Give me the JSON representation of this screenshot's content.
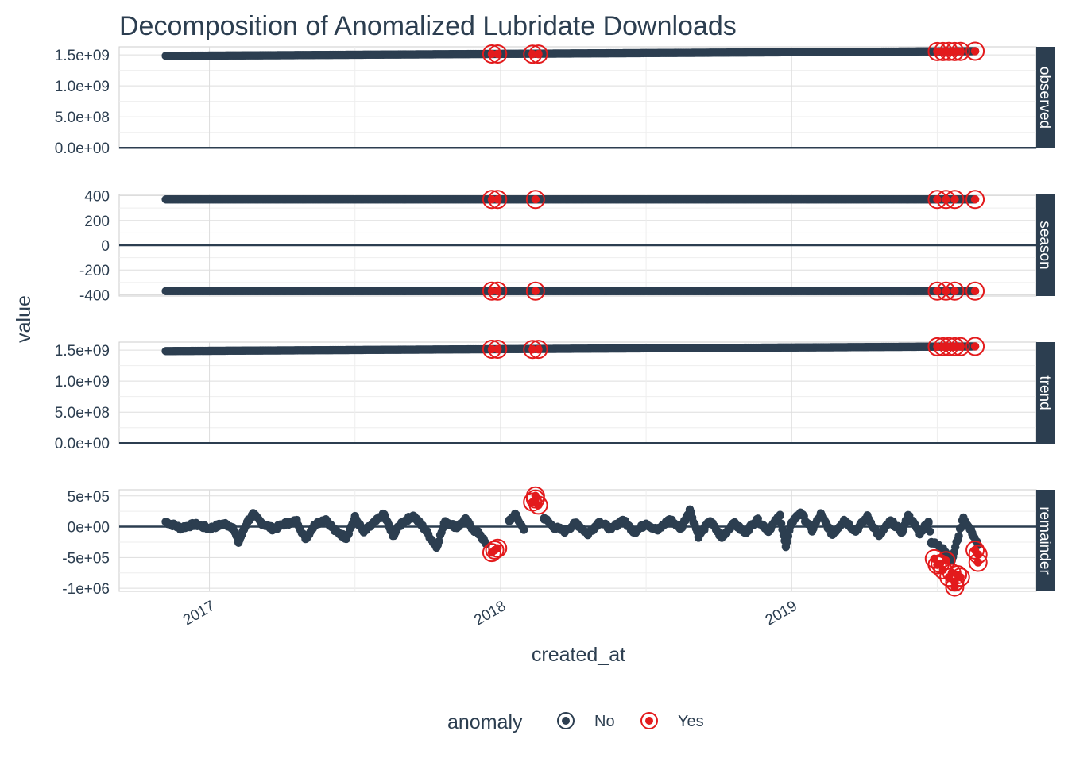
{
  "title": "Decomposition of Anomalized Lubridate Downloads",
  "colors": {
    "normal": "#2c3e50",
    "anomaly": "#e31a1c",
    "grid": "#dddddd",
    "strip_bg": "#2c3e50"
  },
  "legend": {
    "title": "anomaly",
    "items": [
      "No",
      "Yes"
    ]
  },
  "chart_data": {
    "type": "scatter",
    "xlabel": "created_at",
    "ylabel": "value",
    "x_range": [
      2016.69,
      2019.84
    ],
    "x_ticks": [
      {
        "value": 2017.0,
        "label": "2017"
      },
      {
        "value": 2018.0,
        "label": "2018"
      },
      {
        "value": 2019.0,
        "label": "2019"
      }
    ],
    "panels": [
      {
        "name": "observed",
        "ylim": [
          -10000000.0,
          1630000000.0
        ],
        "y_ticks": [
          {
            "value": 0,
            "label": "0.0e+00"
          },
          {
            "value": 500000000.0,
            "label": "5.0e+08"
          },
          {
            "value": 1000000000.0,
            "label": "1.0e+09"
          },
          {
            "value": 1500000000.0,
            "label": "1.5e+09"
          }
        ],
        "zero_line": true,
        "series_start": [
          2016.85,
          1485000000.0
        ],
        "series_end": [
          2019.63,
          1560000000.0
        ],
        "anomalies": [
          [
            2017.97,
            1515000000.0
          ],
          [
            2017.99,
            1515000000.0
          ],
          [
            2018.11,
            1512000000.0
          ],
          [
            2018.13,
            1513000000.0
          ],
          [
            2019.5,
            1555000000.0
          ],
          [
            2019.52,
            1555000000.0
          ],
          [
            2019.54,
            1556000000.0
          ],
          [
            2019.56,
            1555000000.0
          ],
          [
            2019.58,
            1557000000.0
          ],
          [
            2019.63,
            1560000000.0
          ]
        ]
      },
      {
        "name": "season",
        "ylim": [
          -410,
          410
        ],
        "y_ticks": [
          {
            "value": -400,
            "label": "-400"
          },
          {
            "value": -200,
            "label": "-200"
          },
          {
            "value": 0,
            "label": "0"
          },
          {
            "value": 200,
            "label": "200"
          },
          {
            "value": 400,
            "label": "400"
          }
        ],
        "zero_line": true,
        "bands": [
          370,
          -370
        ],
        "series_start": [
          2016.85,
          370
        ],
        "series_end": [
          2019.63,
          370
        ],
        "anomalies": [
          [
            2017.97,
            370
          ],
          [
            2017.99,
            370
          ],
          [
            2018.12,
            370
          ],
          [
            2019.5,
            370
          ],
          [
            2019.53,
            370
          ],
          [
            2019.56,
            370
          ],
          [
            2019.63,
            370
          ],
          [
            2017.97,
            -370
          ],
          [
            2017.99,
            -370
          ],
          [
            2018.12,
            -370
          ],
          [
            2019.5,
            -370
          ],
          [
            2019.53,
            -370
          ],
          [
            2019.56,
            -370
          ],
          [
            2019.63,
            -370
          ]
        ]
      },
      {
        "name": "trend",
        "ylim": [
          -10000000.0,
          1630000000.0
        ],
        "y_ticks": [
          {
            "value": 0,
            "label": "0.0e+00"
          },
          {
            "value": 500000000.0,
            "label": "5.0e+08"
          },
          {
            "value": 1000000000.0,
            "label": "1.0e+09"
          },
          {
            "value": 1500000000.0,
            "label": "1.5e+09"
          }
        ],
        "zero_line": true,
        "series_start": [
          2016.85,
          1485000000.0
        ],
        "series_end": [
          2019.63,
          1560000000.0
        ],
        "anomalies": [
          [
            2017.97,
            1515000000.0
          ],
          [
            2017.99,
            1515000000.0
          ],
          [
            2018.11,
            1512000000.0
          ],
          [
            2018.13,
            1513000000.0
          ],
          [
            2019.5,
            1555000000.0
          ],
          [
            2019.52,
            1555000000.0
          ],
          [
            2019.54,
            1556000000.0
          ],
          [
            2019.56,
            1555000000.0
          ],
          [
            2019.58,
            1557000000.0
          ],
          [
            2019.63,
            1560000000.0
          ]
        ]
      },
      {
        "name": "remainder",
        "ylim": [
          -1050000.0,
          600000.0
        ],
        "y_ticks": [
          {
            "value": -1000000.0,
            "label": "-1e+06"
          },
          {
            "value": -500000.0,
            "label": "-5e+05"
          },
          {
            "value": 0,
            "label": "0e+00"
          },
          {
            "value": 500000.0,
            "label": "5e+05"
          }
        ],
        "zero_line": true,
        "series": [
          [
            2016.85,
            80000
          ],
          [
            2016.9,
            -20000
          ],
          [
            2016.95,
            40000
          ],
          [
            2017.0,
            -30000
          ],
          [
            2017.05,
            50000
          ],
          [
            2017.08,
            -10000
          ],
          [
            2017.1,
            -250000
          ],
          [
            2017.13,
            80000
          ],
          [
            2017.15,
            200000
          ],
          [
            2017.18,
            60000
          ],
          [
            2017.22,
            -40000
          ],
          [
            2017.26,
            50000
          ],
          [
            2017.3,
            90000
          ],
          [
            2017.33,
            -200000
          ],
          [
            2017.36,
            30000
          ],
          [
            2017.4,
            120000
          ],
          [
            2017.43,
            -60000
          ],
          [
            2017.47,
            -180000
          ],
          [
            2017.5,
            150000
          ],
          [
            2017.53,
            -90000
          ],
          [
            2017.56,
            40000
          ],
          [
            2017.6,
            200000
          ],
          [
            2017.63,
            -150000
          ],
          [
            2017.66,
            60000
          ],
          [
            2017.7,
            180000
          ],
          [
            2017.74,
            -40000
          ],
          [
            2017.78,
            -330000
          ],
          [
            2017.81,
            90000
          ],
          [
            2017.85,
            -10000
          ],
          [
            2017.88,
            110000
          ],
          [
            2017.91,
            -60000
          ],
          [
            2017.93,
            -130000
          ],
          [
            2017.95,
            -280000
          ],
          [
            2018.03,
            90000
          ],
          [
            2018.05,
            200000
          ],
          [
            2018.08,
            -50000
          ],
          [
            2018.15,
            140000
          ],
          [
            2018.18,
            0
          ],
          [
            2018.22,
            -70000
          ],
          [
            2018.26,
            60000
          ],
          [
            2018.3,
            -120000
          ],
          [
            2018.34,
            80000
          ],
          [
            2018.38,
            -40000
          ],
          [
            2018.42,
            110000
          ],
          [
            2018.46,
            -90000
          ],
          [
            2018.5,
            50000
          ],
          [
            2018.54,
            -60000
          ],
          [
            2018.58,
            120000
          ],
          [
            2018.62,
            -30000
          ],
          [
            2018.65,
            280000
          ],
          [
            2018.68,
            -150000
          ],
          [
            2018.72,
            90000
          ],
          [
            2018.76,
            -180000
          ],
          [
            2018.8,
            60000
          ],
          [
            2018.84,
            -100000
          ],
          [
            2018.88,
            120000
          ],
          [
            2018.92,
            -60000
          ],
          [
            2018.96,
            180000
          ],
          [
            2018.98,
            -330000
          ],
          [
            2019.0,
            70000
          ],
          [
            2019.03,
            230000
          ],
          [
            2019.07,
            -60000
          ],
          [
            2019.1,
            200000
          ],
          [
            2019.14,
            -130000
          ],
          [
            2019.18,
            110000
          ],
          [
            2019.22,
            -70000
          ],
          [
            2019.26,
            160000
          ],
          [
            2019.3,
            -150000
          ],
          [
            2019.34,
            90000
          ],
          [
            2019.38,
            -90000
          ],
          [
            2019.4,
            190000
          ],
          [
            2019.44,
            -100000
          ],
          [
            2019.47,
            80000
          ],
          [
            2019.48,
            -250000
          ],
          [
            2019.52,
            -350000
          ],
          [
            2019.55,
            -550000
          ],
          [
            2019.59,
            150000
          ],
          [
            2019.6,
            50000
          ],
          [
            2019.62,
            -100000
          ],
          [
            2019.64,
            -300000
          ]
        ],
        "anomalies": [
          [
            2017.97,
            -420000
          ],
          [
            2017.98,
            -380000
          ],
          [
            2017.99,
            -350000
          ],
          [
            2018.11,
            400000
          ],
          [
            2018.12,
            500000
          ],
          [
            2018.13,
            350000
          ],
          [
            2018.12,
            450000
          ],
          [
            2019.49,
            -520000
          ],
          [
            2019.5,
            -620000
          ],
          [
            2019.51,
            -600000
          ],
          [
            2019.52,
            -700000
          ],
          [
            2019.53,
            -550000
          ],
          [
            2019.54,
            -820000
          ],
          [
            2019.55,
            -750000
          ],
          [
            2019.56,
            -900000
          ],
          [
            2019.57,
            -780000
          ],
          [
            2019.56,
            -980000
          ],
          [
            2019.58,
            -820000
          ],
          [
            2019.63,
            -380000
          ],
          [
            2019.64,
            -450000
          ],
          [
            2019.64,
            -580000
          ]
        ]
      }
    ]
  }
}
